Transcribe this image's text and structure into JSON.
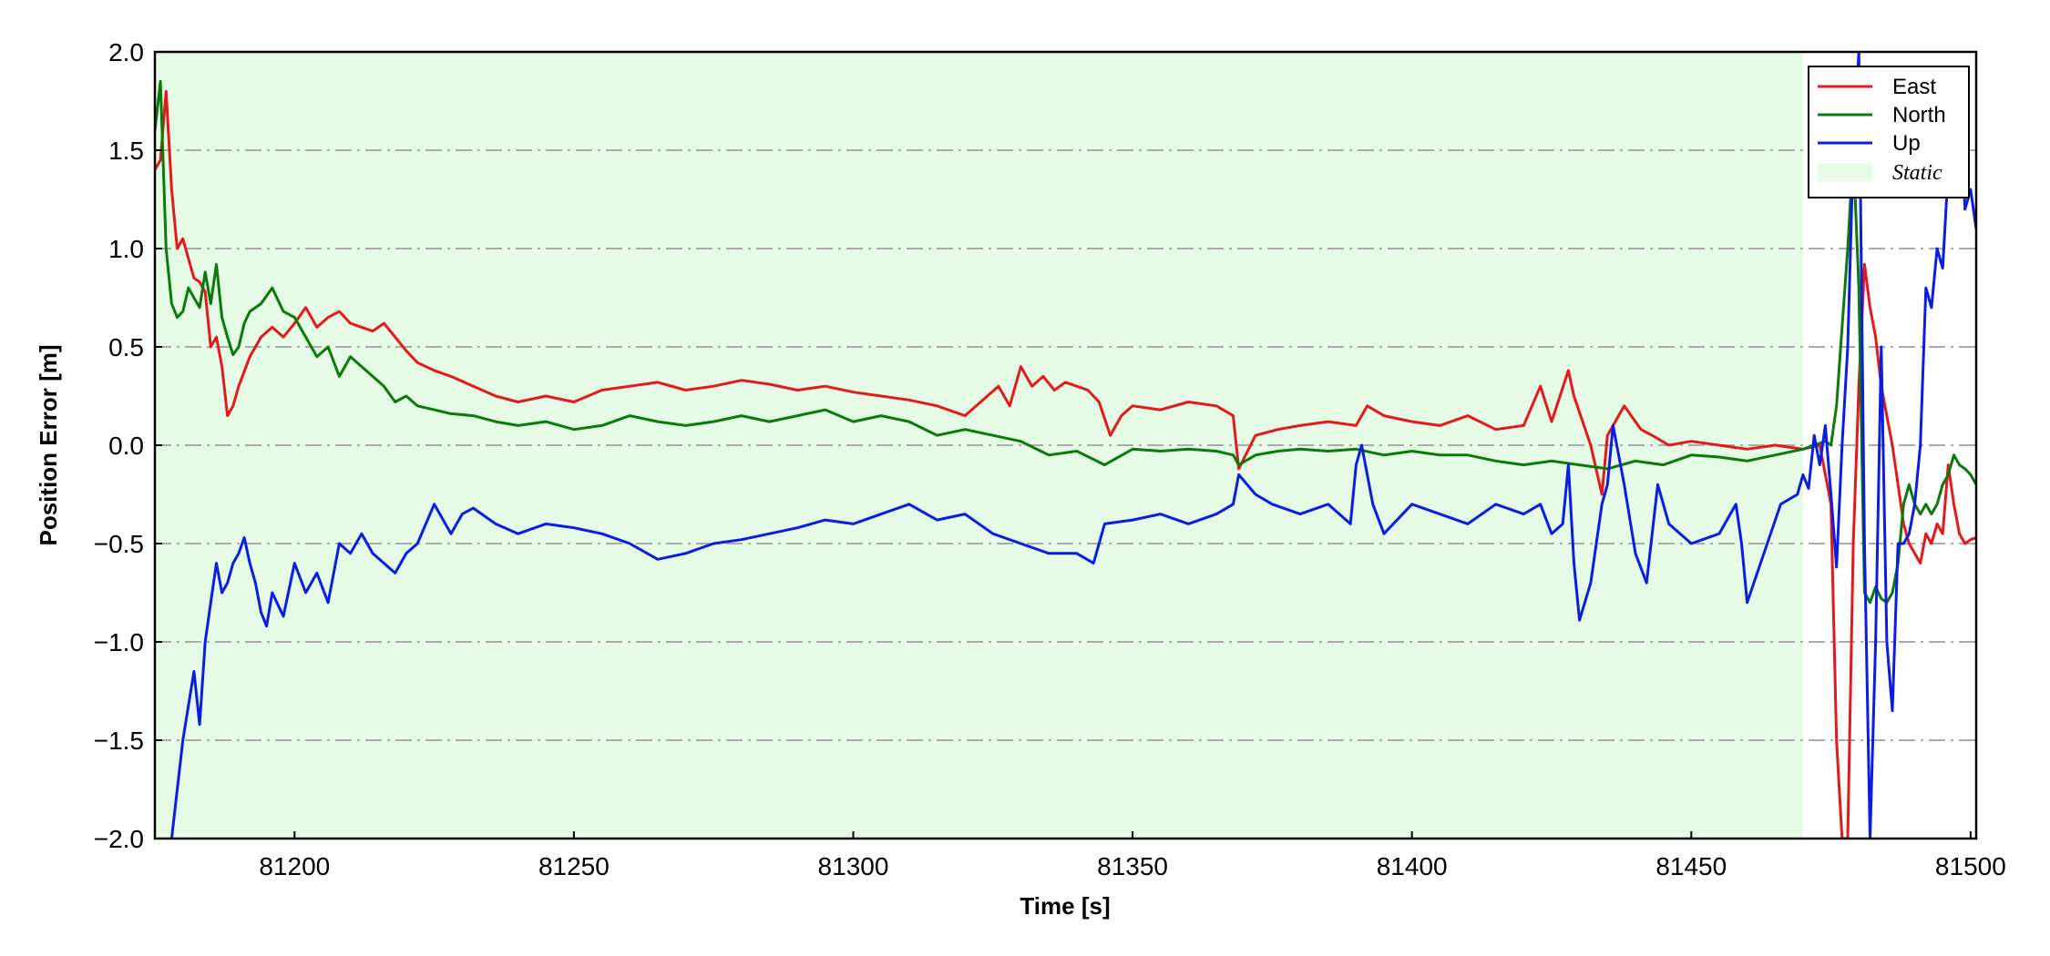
{
  "chart_data": {
    "type": "line",
    "xlabel": "Time [s]",
    "ylabel": "Position Error [m]",
    "xlim": [
      81175,
      81501
    ],
    "ylim": [
      -2.0,
      2.0
    ],
    "xticks": [
      81200,
      81250,
      81300,
      81350,
      81400,
      81450,
      81500
    ],
    "xtick_labels": [
      "81200",
      "81250",
      "81300",
      "81350",
      "81400",
      "81450",
      "81500"
    ],
    "yticks": [
      -2.0,
      -1.5,
      -1.0,
      -0.5,
      0.0,
      0.5,
      1.0,
      1.5,
      2.0
    ],
    "ytick_labels": [
      "−2.0",
      "−1.5",
      "−1.0",
      "−0.5",
      "0.0",
      "0.5",
      "1.0",
      "1.5",
      "2.0"
    ],
    "grid": {
      "axis": "y",
      "style": "dash-dot",
      "color": "#aaaaaa"
    },
    "legend": {
      "position": "top-right",
      "static_label": "Static"
    },
    "static_region": {
      "x_start": 81175,
      "x_end": 81470,
      "color": "#e6fbe6"
    },
    "series": [
      {
        "name": "East",
        "color": "#e31a1c",
        "x": [
          81175,
          81176,
          81177,
          81178,
          81179,
          81180,
          81181,
          81182,
          81183,
          81184,
          81185,
          81186,
          81187,
          81188,
          81189,
          81190,
          81192,
          81194,
          81196,
          81198,
          81200,
          81202,
          81204,
          81206,
          81208,
          81210,
          81212,
          81214,
          81216,
          81218,
          81220,
          81222,
          81225,
          81228,
          81232,
          81236,
          81240,
          81245,
          81250,
          81255,
          81260,
          81265,
          81270,
          81275,
          81280,
          81285,
          81290,
          81295,
          81300,
          81305,
          81310,
          81315,
          81320,
          81324,
          81326,
          81328,
          81330,
          81332,
          81334,
          81336,
          81338,
          81340,
          81342,
          81344,
          81346,
          81348,
          81350,
          81355,
          81360,
          81365,
          81368,
          81369,
          81372,
          81376,
          81380,
          81385,
          81390,
          81392,
          81395,
          81400,
          81405,
          81410,
          81415,
          81420,
          81423,
          81425,
          81428,
          81429,
          81432,
          81434,
          81435,
          81438,
          81441,
          81443,
          81446,
          81450,
          81455,
          81460,
          81465,
          81470,
          81473,
          81475,
          81476,
          81477,
          81478,
          81479,
          81480,
          81481,
          81482,
          81483,
          81484,
          81485,
          81486,
          81487,
          81488,
          81489,
          81490,
          81491,
          81492,
          81493,
          81494,
          81495,
          81496,
          81497,
          81498,
          81499,
          81500,
          81501
        ],
        "values": [
          1.4,
          1.45,
          1.8,
          1.3,
          1.0,
          1.05,
          0.95,
          0.85,
          0.83,
          0.78,
          0.5,
          0.55,
          0.4,
          0.15,
          0.2,
          0.3,
          0.45,
          0.55,
          0.6,
          0.55,
          0.62,
          0.7,
          0.6,
          0.65,
          0.68,
          0.62,
          0.6,
          0.58,
          0.62,
          0.55,
          0.48,
          0.42,
          0.38,
          0.35,
          0.3,
          0.25,
          0.22,
          0.25,
          0.22,
          0.28,
          0.3,
          0.32,
          0.28,
          0.3,
          0.33,
          0.31,
          0.28,
          0.3,
          0.27,
          0.25,
          0.23,
          0.2,
          0.15,
          0.25,
          0.3,
          0.2,
          0.4,
          0.3,
          0.35,
          0.28,
          0.32,
          0.3,
          0.28,
          0.22,
          0.05,
          0.15,
          0.2,
          0.18,
          0.22,
          0.2,
          0.15,
          -0.12,
          0.05,
          0.08,
          0.1,
          0.12,
          0.1,
          0.2,
          0.15,
          0.12,
          0.1,
          0.15,
          0.08,
          0.1,
          0.3,
          0.12,
          0.38,
          0.25,
          0.0,
          -0.25,
          0.05,
          0.2,
          0.08,
          0.05,
          0.0,
          0.02,
          0.0,
          -0.02,
          0.0,
          -0.02,
          0.0,
          -0.3,
          -1.5,
          -2.0,
          -2.0,
          -0.5,
          0.3,
          0.92,
          0.7,
          0.55,
          0.3,
          0.15,
          0.0,
          -0.2,
          -0.4,
          -0.5,
          -0.55,
          -0.6,
          -0.45,
          -0.5,
          -0.4,
          -0.45,
          -0.1,
          -0.3,
          -0.45,
          -0.5,
          -0.48,
          -0.47
        ]
      },
      {
        "name": "North",
        "color": "#0b7a0b",
        "x": [
          81175,
          81176,
          81177,
          81178,
          81179,
          81180,
          81181,
          81182,
          81183,
          81184,
          81185,
          81186,
          81187,
          81188,
          81189,
          81190,
          81191,
          81192,
          81194,
          81196,
          81198,
          81200,
          81202,
          81204,
          81206,
          81208,
          81210,
          81212,
          81214,
          81216,
          81218,
          81220,
          81222,
          81225,
          81228,
          81232,
          81236,
          81240,
          81245,
          81250,
          81255,
          81260,
          81265,
          81270,
          81275,
          81280,
          81285,
          81290,
          81295,
          81300,
          81305,
          81310,
          81315,
          81320,
          81325,
          81330,
          81335,
          81340,
          81345,
          81350,
          81355,
          81360,
          81365,
          81368,
          81369,
          81372,
          81376,
          81380,
          81385,
          81390,
          81395,
          81400,
          81405,
          81410,
          81415,
          81420,
          81425,
          81430,
          81435,
          81440,
          81445,
          81450,
          81455,
          81460,
          81465,
          81470,
          81472,
          81474,
          81475,
          81476,
          81477,
          81478,
          81479,
          81480,
          81481,
          81482,
          81483,
          81484,
          81485,
          81486,
          81487,
          81488,
          81489,
          81490,
          81491,
          81492,
          81493,
          81494,
          81495,
          81496,
          81497,
          81498,
          81499,
          81500,
          81501
        ],
        "values": [
          1.6,
          1.85,
          1.0,
          0.72,
          0.65,
          0.68,
          0.8,
          0.75,
          0.7,
          0.88,
          0.72,
          0.92,
          0.65,
          0.55,
          0.46,
          0.5,
          0.62,
          0.68,
          0.72,
          0.8,
          0.68,
          0.65,
          0.55,
          0.45,
          0.5,
          0.35,
          0.45,
          0.4,
          0.35,
          0.3,
          0.22,
          0.25,
          0.2,
          0.18,
          0.16,
          0.15,
          0.12,
          0.1,
          0.12,
          0.08,
          0.1,
          0.15,
          0.12,
          0.1,
          0.12,
          0.15,
          0.12,
          0.15,
          0.18,
          0.12,
          0.15,
          0.12,
          0.05,
          0.08,
          0.05,
          0.02,
          -0.05,
          -0.03,
          -0.1,
          -0.02,
          -0.03,
          -0.02,
          -0.03,
          -0.05,
          -0.1,
          -0.05,
          -0.03,
          -0.02,
          -0.03,
          -0.02,
          -0.05,
          -0.03,
          -0.05,
          -0.05,
          -0.08,
          -0.1,
          -0.08,
          -0.1,
          -0.12,
          -0.08,
          -0.1,
          -0.05,
          -0.06,
          -0.08,
          -0.05,
          -0.02,
          0.0,
          0.02,
          0.0,
          0.2,
          0.6,
          1.0,
          1.5,
          0.8,
          -0.75,
          -0.8,
          -0.72,
          -0.78,
          -0.8,
          -0.75,
          -0.6,
          -0.3,
          -0.2,
          -0.3,
          -0.35,
          -0.3,
          -0.35,
          -0.3,
          -0.2,
          -0.15,
          -0.05,
          -0.1,
          -0.12,
          -0.15,
          -0.2
        ]
      },
      {
        "name": "Up",
        "color": "#0a1de0",
        "x": [
          81178,
          81180,
          81182,
          81183,
          81184,
          81185,
          81186,
          81187,
          81188,
          81189,
          81190,
          81191,
          81192,
          81193,
          81194,
          81195,
          81196,
          81198,
          81200,
          81202,
          81204,
          81206,
          81208,
          81210,
          81212,
          81214,
          81216,
          81218,
          81220,
          81222,
          81225,
          81228,
          81230,
          81232,
          81236,
          81240,
          81245,
          81250,
          81255,
          81260,
          81265,
          81270,
          81275,
          81280,
          81285,
          81290,
          81295,
          81300,
          81305,
          81310,
          81315,
          81320,
          81325,
          81330,
          81335,
          81340,
          81343,
          81345,
          81350,
          81355,
          81360,
          81365,
          81368,
          81369,
          81372,
          81375,
          81380,
          81385,
          81389,
          81390,
          81391,
          81393,
          81395,
          81400,
          81405,
          81410,
          81415,
          81420,
          81423,
          81425,
          81427,
          81428,
          81429,
          81430,
          81432,
          81434,
          81435,
          81436,
          81438,
          81440,
          81442,
          81444,
          81446,
          81450,
          81455,
          81458,
          81459,
          81460,
          81463,
          81466,
          81469,
          81470,
          81471,
          81472,
          81473,
          81474,
          81475,
          81476,
          81477,
          81478,
          81479,
          81480,
          81481,
          81482,
          81483,
          81484,
          81485,
          81486,
          81487,
          81488,
          81489,
          81490,
          81491,
          81492,
          81493,
          81494,
          81495,
          81496,
          81497,
          81498,
          81499,
          81500,
          81501
        ],
        "values": [
          -2.0,
          -1.5,
          -1.15,
          -1.42,
          -1.0,
          -0.8,
          -0.6,
          -0.75,
          -0.7,
          -0.6,
          -0.55,
          -0.47,
          -0.6,
          -0.7,
          -0.85,
          -0.92,
          -0.75,
          -0.87,
          -0.6,
          -0.75,
          -0.65,
          -0.8,
          -0.5,
          -0.55,
          -0.45,
          -0.55,
          -0.6,
          -0.65,
          -0.55,
          -0.5,
          -0.3,
          -0.45,
          -0.35,
          -0.32,
          -0.4,
          -0.45,
          -0.4,
          -0.42,
          -0.45,
          -0.5,
          -0.58,
          -0.55,
          -0.5,
          -0.48,
          -0.45,
          -0.42,
          -0.38,
          -0.4,
          -0.35,
          -0.3,
          -0.38,
          -0.35,
          -0.45,
          -0.5,
          -0.55,
          -0.55,
          -0.6,
          -0.4,
          -0.38,
          -0.35,
          -0.4,
          -0.35,
          -0.3,
          -0.15,
          -0.25,
          -0.3,
          -0.35,
          -0.3,
          -0.4,
          -0.1,
          0.0,
          -0.3,
          -0.45,
          -0.3,
          -0.35,
          -0.4,
          -0.3,
          -0.35,
          -0.3,
          -0.45,
          -0.4,
          -0.1,
          -0.6,
          -0.89,
          -0.7,
          -0.3,
          -0.2,
          0.1,
          -0.2,
          -0.55,
          -0.7,
          -0.2,
          -0.4,
          -0.5,
          -0.45,
          -0.3,
          -0.5,
          -0.8,
          -0.55,
          -0.3,
          -0.25,
          -0.15,
          -0.22,
          0.05,
          -0.1,
          0.1,
          -0.25,
          -0.62,
          0.0,
          0.5,
          1.5,
          2.0,
          -0.5,
          -2.0,
          -1.0,
          0.5,
          -1.0,
          -1.35,
          -0.5,
          -0.5,
          -0.45,
          -0.3,
          0.0,
          0.8,
          0.7,
          1.0,
          0.9,
          1.4,
          1.6,
          1.8,
          1.2,
          1.3,
          1.1
        ]
      }
    ]
  }
}
